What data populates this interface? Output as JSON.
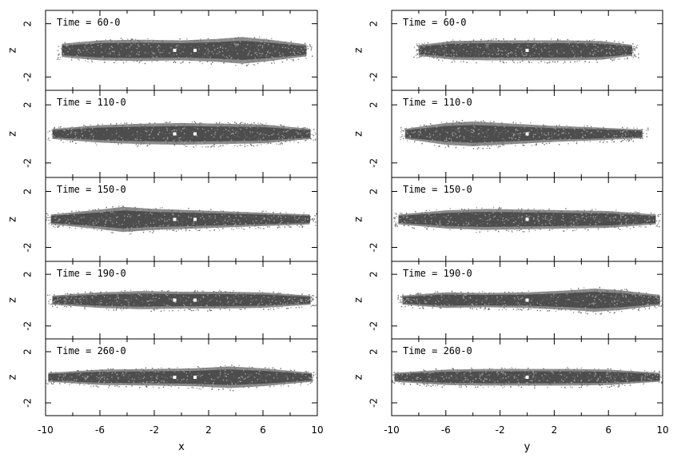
{
  "chart_data": {
    "type": "scatter",
    "description_layout": "two columns x five rows of density panels",
    "columns": [
      {
        "xlabel": "x",
        "ylabel": "z",
        "xlim": [
          -10,
          10
        ],
        "ylim": [
          -3,
          3
        ],
        "xticks": [
          "-10",
          "-6",
          "-2",
          "2",
          "6",
          "10"
        ],
        "yticks": [
          "-2",
          "2"
        ],
        "panels": [
          {
            "label": "Time = 60-0",
            "markers": [
              -0.5,
              1.0
            ],
            "profile": [
              [
                -8.8,
                0.5
              ],
              [
                -6,
                0.75
              ],
              [
                -3,
                0.8
              ],
              [
                0,
                0.75
              ],
              [
                2.5,
                0.85
              ],
              [
                4.5,
                1.0
              ],
              [
                6.5,
                0.8
              ],
              [
                9.2,
                0.45
              ]
            ]
          },
          {
            "label": "Time = 110-0",
            "markers": [
              -0.5,
              1.0
            ],
            "profile": [
              [
                -9.5,
                0.35
              ],
              [
                -6,
                0.6
              ],
              [
                -3,
                0.7
              ],
              [
                0,
                0.75
              ],
              [
                3,
                0.7
              ],
              [
                6,
                0.65
              ],
              [
                9.5,
                0.35
              ]
            ]
          },
          {
            "label": "Time = 150-0",
            "markers": [
              -0.5,
              1.0
            ],
            "profile": [
              [
                -9.6,
                0.35
              ],
              [
                -6,
                0.7
              ],
              [
                -4.3,
                0.9
              ],
              [
                -2,
                0.75
              ],
              [
                1,
                0.65
              ],
              [
                4,
                0.55
              ],
              [
                9.5,
                0.35
              ]
            ]
          },
          {
            "label": "Time = 190-0",
            "markers": [
              -0.5,
              1.0
            ],
            "profile": [
              [
                -9.5,
                0.35
              ],
              [
                -6,
                0.6
              ],
              [
                -3,
                0.7
              ],
              [
                0,
                0.65
              ],
              [
                3,
                0.65
              ],
              [
                6,
                0.6
              ],
              [
                9.5,
                0.35
              ]
            ]
          },
          {
            "label": "Time = 260-0",
            "markers": [
              -0.5,
              1.0
            ],
            "profile": [
              [
                -9.8,
                0.35
              ],
              [
                -6,
                0.6
              ],
              [
                -2,
                0.65
              ],
              [
                1,
                0.7
              ],
              [
                3.5,
                0.85
              ],
              [
                6,
                0.7
              ],
              [
                9.6,
                0.35
              ]
            ]
          }
        ]
      },
      {
        "xlabel": "y",
        "ylabel": "z",
        "xlim": [
          -10,
          10
        ],
        "ylim": [
          -3,
          3
        ],
        "xticks": [
          "-10",
          "-6",
          "-2",
          "2",
          "6",
          "10"
        ],
        "yticks": [
          "-2",
          "2"
        ],
        "panels": [
          {
            "label": "Time = 60-0",
            "markers": [
              0.0
            ],
            "profile": [
              [
                -8,
                0.4
              ],
              [
                -5.5,
                0.7
              ],
              [
                -3,
                0.75
              ],
              [
                0,
                0.75
              ],
              [
                3,
                0.75
              ],
              [
                5.5,
                0.7
              ],
              [
                7.8,
                0.4
              ]
            ]
          },
          {
            "label": "Time = 110-0",
            "markers": [
              0.0
            ],
            "profile": [
              [
                -9,
                0.35
              ],
              [
                -6,
                0.75
              ],
              [
                -4,
                0.85
              ],
              [
                -1,
                0.7
              ],
              [
                2,
                0.55
              ],
              [
                5,
                0.45
              ],
              [
                8.5,
                0.3
              ]
            ]
          },
          {
            "label": "Time = 150-0",
            "markers": [
              0.0
            ],
            "profile": [
              [
                -9.5,
                0.35
              ],
              [
                -6,
                0.65
              ],
              [
                -3,
                0.75
              ],
              [
                0,
                0.7
              ],
              [
                3,
                0.65
              ],
              [
                6,
                0.6
              ],
              [
                9.5,
                0.35
              ]
            ]
          },
          {
            "label": "Time = 190-0",
            "markers": [
              0.0
            ],
            "profile": [
              [
                -9.2,
                0.35
              ],
              [
                -6,
                0.6
              ],
              [
                -3,
                0.55
              ],
              [
                0,
                0.6
              ],
              [
                3,
                0.75
              ],
              [
                5,
                0.9
              ],
              [
                7,
                0.75
              ],
              [
                9.8,
                0.4
              ]
            ]
          },
          {
            "label": "Time = 260-0",
            "markers": [
              0.0
            ],
            "profile": [
              [
                -9.8,
                0.35
              ],
              [
                -6,
                0.6
              ],
              [
                -3,
                0.65
              ],
              [
                0,
                0.65
              ],
              [
                3,
                0.65
              ],
              [
                6,
                0.6
              ],
              [
                9.8,
                0.35
              ]
            ]
          }
        ]
      }
    ],
    "colors": {
      "density": "#4d4d4d",
      "marker": "#ffffff",
      "frame": "#000000"
    }
  }
}
